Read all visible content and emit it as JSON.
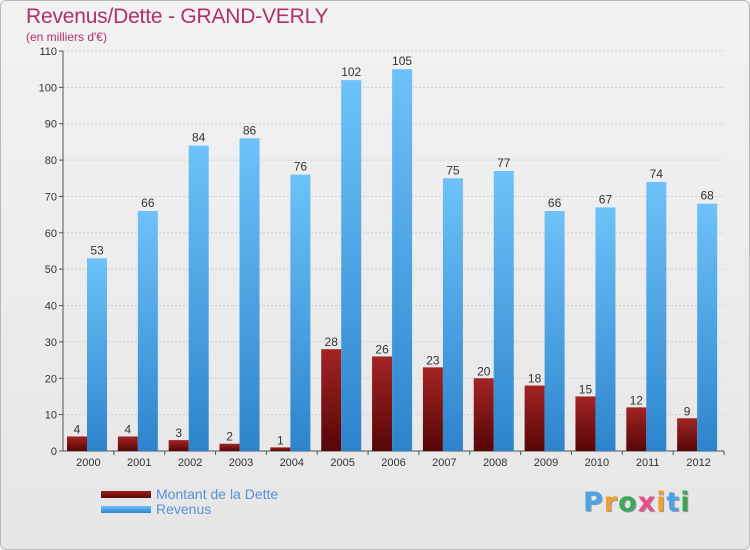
{
  "chart_data": {
    "type": "bar",
    "title": "Revenus/Dette - GRAND-VERLY",
    "subtitle": "(en milliers d'€)",
    "categories": [
      "2000",
      "2001",
      "2002",
      "2003",
      "2004",
      "2005",
      "2006",
      "2007",
      "2008",
      "2009",
      "2010",
      "2011",
      "2012"
    ],
    "series": [
      {
        "name": "Montant de la Dette",
        "color": "#7a1010",
        "values": [
          4,
          4,
          3,
          2,
          1,
          28,
          26,
          23,
          20,
          18,
          15,
          12,
          9
        ]
      },
      {
        "name": "Revenus",
        "color": "#4aa3e6",
        "values": [
          53,
          66,
          84,
          86,
          76,
          102,
          105,
          75,
          77,
          66,
          67,
          74,
          68
        ]
      }
    ],
    "yticks": [
      0,
      10,
      20,
      30,
      40,
      50,
      60,
      70,
      80,
      90,
      100,
      110
    ],
    "ylim": [
      0,
      110
    ],
    "grid": true
  },
  "logo": {
    "letters": [
      "P",
      "r",
      "o",
      "x",
      "i",
      "t",
      "i"
    ],
    "colors": [
      "#4aa3e6",
      "#f0a030",
      "#3aa858",
      "#e84c8a",
      "#f0a030",
      "#4aa3e6",
      "#3aa858"
    ]
  }
}
